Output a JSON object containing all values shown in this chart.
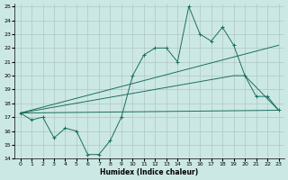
{
  "xlabel": "Humidex (Indice chaleur)",
  "bg_color": "#cce8e4",
  "grid_color": "#b0c8c4",
  "line_color": "#1a6e60",
  "xlim": [
    -0.5,
    23.5
  ],
  "ylim": [
    14,
    25.2
  ],
  "xticks": [
    0,
    1,
    2,
    3,
    4,
    5,
    6,
    7,
    8,
    9,
    10,
    11,
    12,
    13,
    14,
    15,
    16,
    17,
    18,
    19,
    20,
    21,
    22,
    23
  ],
  "yticks": [
    14,
    15,
    16,
    17,
    18,
    19,
    20,
    21,
    22,
    23,
    24,
    25
  ],
  "line1_x": [
    0,
    1,
    2,
    3,
    4,
    5,
    6,
    7,
    8,
    9,
    10,
    11,
    12,
    13,
    14,
    15,
    16,
    17,
    18,
    19,
    20,
    21,
    22,
    23
  ],
  "line1_y": [
    17.3,
    16.8,
    17.0,
    15.5,
    16.2,
    16.0,
    14.3,
    14.3,
    15.3,
    17.0,
    20.0,
    21.5,
    22.0,
    22.0,
    21.0,
    25.0,
    23.0,
    22.5,
    23.5,
    22.2,
    20.0,
    18.5,
    18.5,
    17.5
  ],
  "line2_x": [
    0,
    23
  ],
  "line2_y": [
    17.3,
    22.2
  ],
  "line3_x": [
    0,
    23
  ],
  "line3_y": [
    17.3,
    17.5
  ],
  "line4_x": [
    0,
    19,
    20,
    23
  ],
  "line4_y": [
    17.3,
    20.0,
    20.0,
    17.5
  ]
}
